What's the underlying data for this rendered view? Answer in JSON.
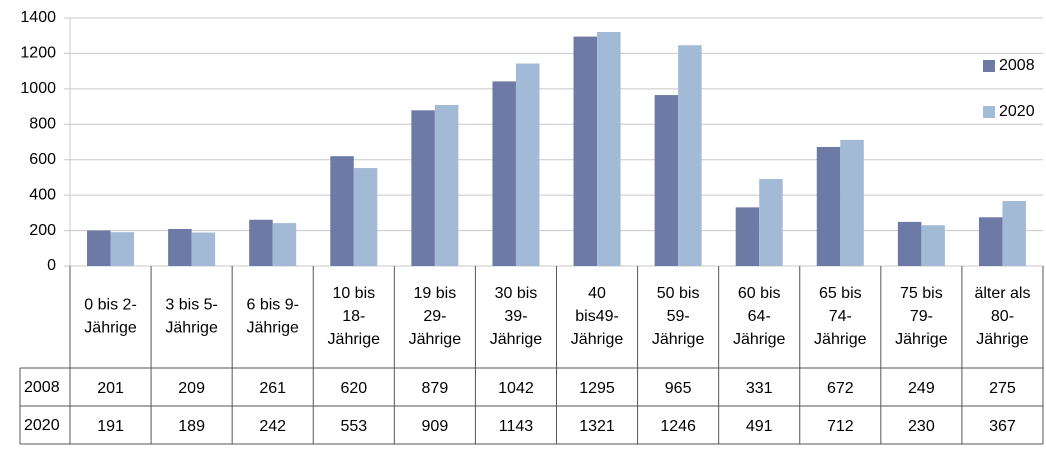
{
  "chart_data": {
    "type": "bar",
    "categories": [
      "0 bis 2-\nJährige",
      "3 bis 5-\nJährige",
      "6 bis 9-\nJährige",
      "10 bis\n18-\nJährige",
      "19 bis\n29-\nJährige",
      "30 bis\n39-\nJährige",
      "40\nbis49-\nJährige",
      "50 bis\n59-\nJährige",
      "60 bis\n64-\nJährige",
      "65 bis\n74-\nJährige",
      "75 bis\n79-\nJährige",
      "älter als\n80-\nJährige"
    ],
    "series": [
      {
        "name": "2008",
        "color": "#6e7aa6",
        "values": [
          201,
          209,
          261,
          620,
          879,
          1042,
          1295,
          965,
          331,
          672,
          249,
          275
        ]
      },
      {
        "name": "2020",
        "color": "#a3bad6",
        "values": [
          191,
          189,
          242,
          553,
          909,
          1143,
          1321,
          1246,
          491,
          712,
          230,
          367
        ]
      }
    ],
    "ylim": [
      0,
      1400
    ],
    "yticks": [
      0,
      200,
      400,
      600,
      800,
      1000,
      1200,
      1400
    ],
    "grid": true,
    "legend": "right"
  }
}
